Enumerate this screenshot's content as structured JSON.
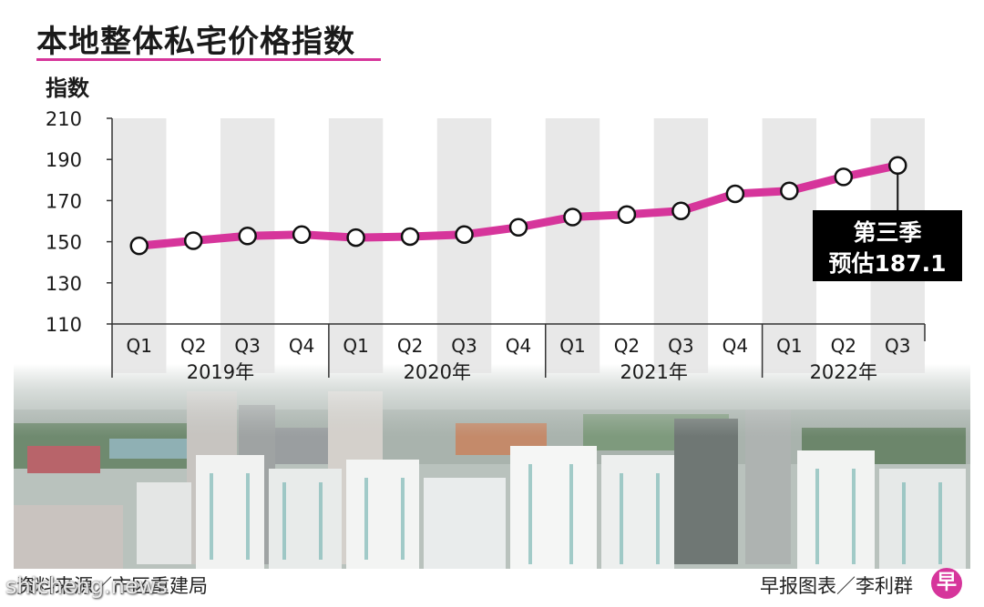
{
  "title": "本地整体私宅价格指数",
  "source": "资料来源／市区重建局",
  "credit": "早报图表／李利群",
  "logo_glyph": "早",
  "watermark": "shicheng.news",
  "colors": {
    "line": "#d6359b",
    "band": "#e6e6e6",
    "callout_bg": "#000000",
    "callout_text": "#ffffff"
  },
  "chart_data": {
    "type": "line",
    "title": "本地整体私宅价格指数",
    "ylabel": "指数",
    "xlabel": "",
    "ylim": [
      110,
      210
    ],
    "yticks": [
      110,
      130,
      150,
      170,
      190,
      210
    ],
    "grid": false,
    "categories": [
      "Q1",
      "Q2",
      "Q3",
      "Q4",
      "Q1",
      "Q2",
      "Q3",
      "Q4",
      "Q1",
      "Q2",
      "Q3",
      "Q4",
      "Q1",
      "Q2",
      "Q3"
    ],
    "year_groups": [
      {
        "label": "2019年",
        "count": 4
      },
      {
        "label": "2020年",
        "count": 4
      },
      {
        "label": "2021年",
        "count": 4
      },
      {
        "label": "2022年",
        "count": 3
      }
    ],
    "series": [
      {
        "values": [
          148.0,
          150.5,
          152.8,
          153.5,
          152.0,
          152.5,
          153.5,
          157.0,
          162.0,
          163.2,
          165.0,
          173.3,
          174.7,
          181.5,
          187.1
        ]
      }
    ],
    "annotation": {
      "line1": "第三季",
      "line2": "预估187.1",
      "point_index": 14
    }
  }
}
